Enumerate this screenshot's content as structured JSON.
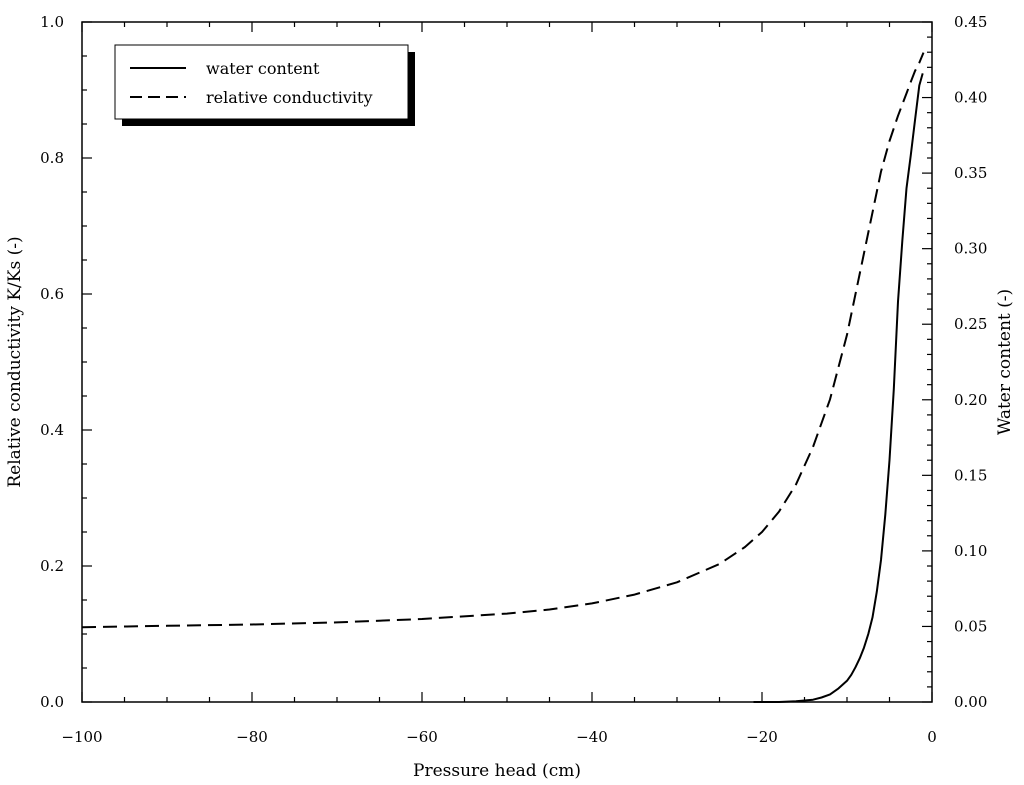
{
  "chart_data": {
    "type": "line",
    "title": "",
    "xlabel": "Pressure head (cm)",
    "ylabel_left": "Relative conductivity K/Ks (-)",
    "ylabel_right": "Water content (-)",
    "xlim": [
      -100,
      0
    ],
    "ylim_left": [
      0,
      1.0
    ],
    "ylim_right": [
      0,
      0.45
    ],
    "grid": false,
    "legend_placement": "top-left",
    "x_ticks": [
      -100,
      -80,
      -60,
      -40,
      -20,
      0
    ],
    "x_tick_labels": [
      "−100",
      "−80",
      "−60",
      "−40",
      "−20",
      "0"
    ],
    "y_left_ticks": [
      0,
      0.2,
      0.4,
      0.6,
      0.8,
      1.0
    ],
    "y_left_tick_labels": [
      "0.0",
      "0.2",
      "0.4",
      "0.6",
      "0.8",
      "1.0"
    ],
    "y_right_ticks": [
      0,
      0.05,
      0.1,
      0.15,
      0.2,
      0.25,
      0.3,
      0.35,
      0.4,
      0.45
    ],
    "y_right_tick_labels": [
      "0.00",
      "0.05",
      "0.10",
      "0.15",
      "0.20",
      "0.25",
      "0.30",
      "0.35",
      "0.40",
      "0.45"
    ],
    "series": [
      {
        "name": "water content",
        "axis": "right",
        "style": "solid",
        "x": [
          -21,
          -18,
          -16,
          -15,
          -14,
          -13,
          -12,
          -11,
          -10,
          -9.5,
          -9,
          -8.5,
          -8,
          -7.5,
          -7,
          -6.5,
          -6,
          -5.5,
          -5,
          -4.5,
          -4,
          -3.5,
          -3,
          -2.5,
          -2,
          -1.5,
          -1.1
        ],
        "y": [
          0.0,
          0.0,
          0.0005,
          0.001,
          0.0015,
          0.003,
          0.005,
          0.009,
          0.014,
          0.018,
          0.023,
          0.029,
          0.036,
          0.045,
          0.056,
          0.073,
          0.094,
          0.124,
          0.16,
          0.207,
          0.265,
          0.305,
          0.34,
          0.362,
          0.385,
          0.408,
          0.416
        ]
      },
      {
        "name": "relative conductivity",
        "axis": "left",
        "style": "dashed",
        "x": [
          -100,
          -90,
          -80,
          -70,
          -60,
          -50,
          -45,
          -40,
          -35,
          -30,
          -25,
          -22,
          -20,
          -18,
          -16,
          -14,
          -12,
          -10,
          -9,
          -8,
          -7,
          -6,
          -5,
          -4,
          -3,
          -2.5,
          -2,
          -1.5,
          -1
        ],
        "y": [
          0.11,
          0.112,
          0.114,
          0.117,
          0.122,
          0.13,
          0.136,
          0.145,
          0.158,
          0.176,
          0.203,
          0.228,
          0.25,
          0.28,
          0.32,
          0.375,
          0.445,
          0.54,
          0.6,
          0.66,
          0.72,
          0.78,
          0.825,
          0.862,
          0.895,
          0.912,
          0.928,
          0.94,
          0.955
        ]
      }
    ]
  }
}
